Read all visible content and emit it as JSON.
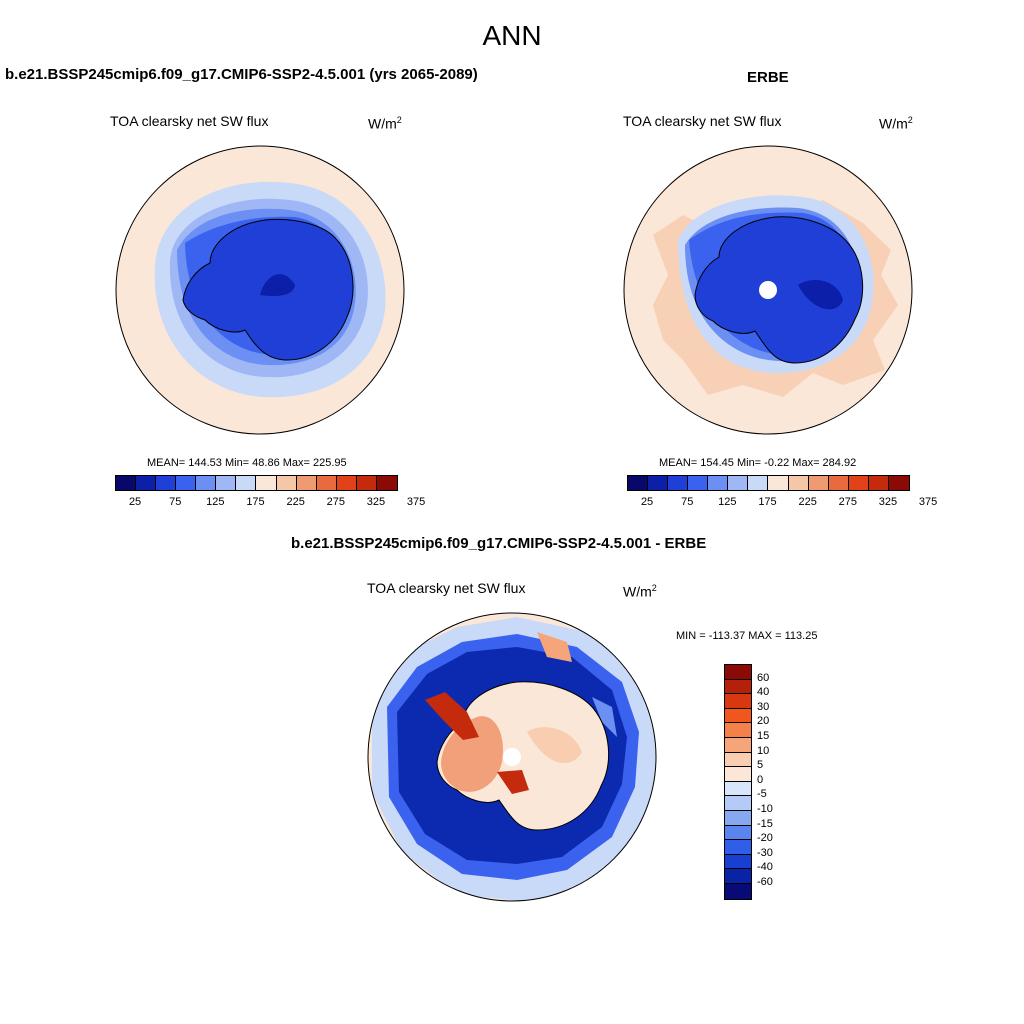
{
  "figure": {
    "title": "ANN"
  },
  "panels": {
    "model": {
      "title": "b.e21.BSSP245cmip6.f09_g17.CMIP6-SSP2-4.5.001 (yrs 2065-2089)",
      "variable": "TOA clearsky net SW flux",
      "units_base": "W/m",
      "units_exp": "2",
      "stats": "MEAN= 144.53  Min=  48.86  Max= 225.95"
    },
    "obs": {
      "title": "ERBE",
      "variable": "TOA clearsky net SW flux",
      "units_base": "W/m",
      "units_exp": "2",
      "stats": "MEAN= 154.45  Min=  -0.22  Max= 284.92"
    },
    "diff": {
      "title": "b.e21.BSSP245cmip6.f09_g17.CMIP6-SSP2-4.5.001 - ERBE",
      "variable": "TOA clearsky net SW flux",
      "units_base": "W/m",
      "units_exp": "2",
      "stats": "MIN = -113.37 MAX = 113.25"
    }
  },
  "colorbar_main": {
    "colors": [
      "#08086b",
      "#0b1fa8",
      "#1f3fd6",
      "#3a62ee",
      "#6b8ff2",
      "#9fb8f5",
      "#c9daf9",
      "#fbe7d8",
      "#f6c6a8",
      "#f09a73",
      "#ea6a3f",
      "#e0421a",
      "#c42a0c",
      "#8b0a05"
    ],
    "ticks": [
      "25",
      "75",
      "125",
      "175",
      "225",
      "275",
      "325",
      "375"
    ]
  },
  "colorbar_diff": {
    "colors": [
      "#8b0a05",
      "#b5200b",
      "#d8380f",
      "#f2561f",
      "#f4804a",
      "#f6a57b",
      "#f9cdb0",
      "#fbe7d8",
      "#d8e6fb",
      "#b3cbf6",
      "#86a8f0",
      "#5a85ee",
      "#2f5fe8",
      "#173fd0",
      "#0a22a5",
      "#080a75"
    ],
    "ticks": [
      "60",
      "40",
      "30",
      "20",
      "15",
      "10",
      "5",
      "0",
      "-5",
      "-10",
      "-15",
      "-20",
      "-30",
      "-40",
      "-60"
    ]
  },
  "map_colors": {
    "ocean_warm": "#fbe7d8",
    "ocean_cool": "#c9daf9",
    "mid_blue": "#6b8ff2",
    "deep_blue": "#1f3fd6",
    "darkest_blue": "#0b1fa8",
    "diff_ocean_blue": "#0b2ab0",
    "diff_land_red": "#f2a07a",
    "diff_land_deep": "#c42a0c"
  }
}
